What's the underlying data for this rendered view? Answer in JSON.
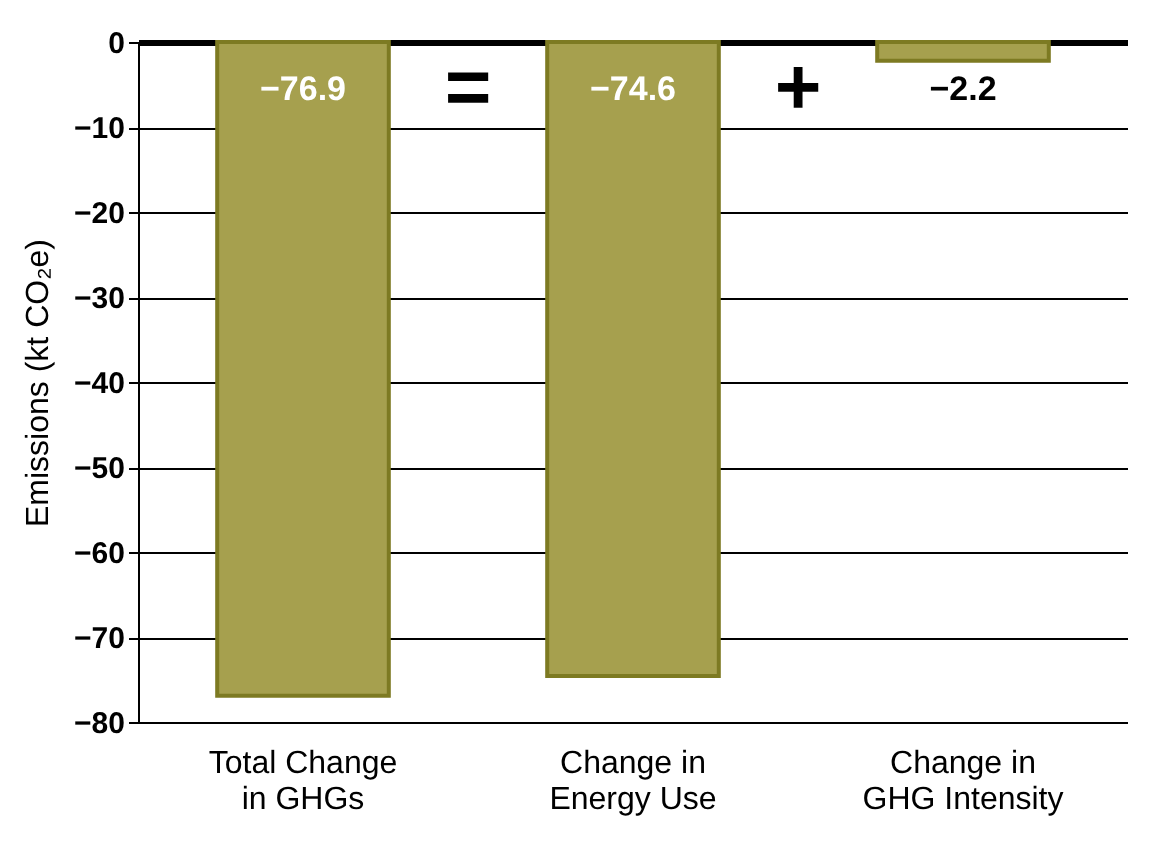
{
  "chart_data": {
    "type": "bar",
    "categories": [
      "Total Change\nin GHGs",
      "Change in\nEnergy Use",
      "Change in\nGHG Intensity"
    ],
    "values": [
      -76.9,
      -74.6,
      -2.2
    ],
    "color": "#a6a04e",
    "ylabel": "Emissions (kt CO₂e)",
    "ylim": [
      -80,
      0
    ],
    "yticks": [
      0,
      -10,
      -20,
      -30,
      -40,
      -50,
      -60,
      -70,
      -80
    ],
    "grid": "y",
    "data_labels": true,
    "annotations": [
      "=",
      "+"
    ]
  }
}
